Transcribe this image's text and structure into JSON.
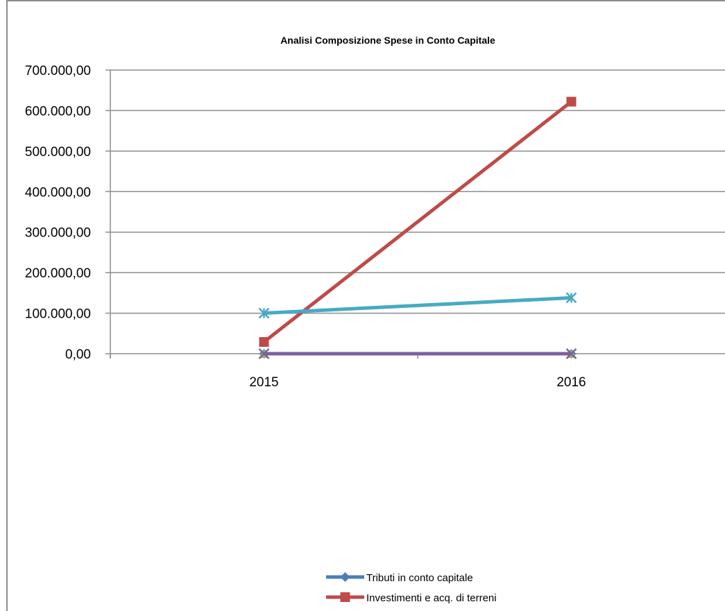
{
  "chart_data": {
    "type": "line",
    "title": "Analisi Composizione Spese in Conto Capitale",
    "xlabel": "",
    "ylabel": "",
    "categories": [
      "2015",
      "2016"
    ],
    "ylim": [
      0,
      700000
    ],
    "yticks": [
      0,
      100000,
      200000,
      300000,
      400000,
      500000,
      600000,
      700000
    ],
    "ytick_labels": [
      "0,00",
      "100.000,00",
      "200.000,00",
      "300.000,00",
      "400.000,00",
      "500.000,00",
      "600.000,00",
      "700.000,00"
    ],
    "grid": "horizontal",
    "legend_position": "bottom",
    "series": [
      {
        "name": "Tributi in conto capitale",
        "values": [
          0,
          0
        ],
        "color": "#4a7ebb",
        "marker": "diamond"
      },
      {
        "name": "Investimenti e acq. di terreni",
        "values": [
          29000,
          622000
        ],
        "color": "#be4b48",
        "marker": "square"
      },
      {
        "name": "",
        "values": [
          0,
          0
        ],
        "color": "#98b954",
        "marker": "triangle"
      },
      {
        "name": "",
        "values": [
          0,
          0
        ],
        "color": "#7d60a0",
        "marker": "x"
      },
      {
        "name": "",
        "values": [
          100000,
          138000
        ],
        "color": "#46aac5",
        "marker": "star"
      }
    ]
  }
}
